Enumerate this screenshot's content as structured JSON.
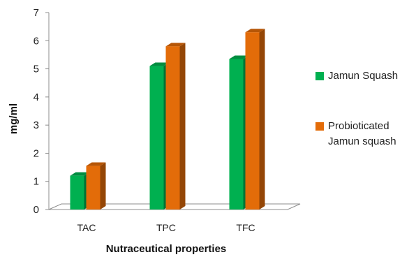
{
  "chart_data": {
    "type": "bar",
    "title": "",
    "categories": [
      "TAC",
      "TPC",
      "TFC"
    ],
    "series": [
      {
        "name": "Jamun Squash",
        "values": [
          1.2,
          5.1,
          5.35
        ],
        "color": "#00b050"
      },
      {
        "name": "Probioticated Jamun squash",
        "values": [
          1.55,
          5.8,
          6.3
        ],
        "color": "#e36c09"
      }
    ],
    "xlabel": "Nutraceutical properties",
    "ylabel": "mg/ml",
    "ylim": [
      0,
      7
    ],
    "yticks": [
      "0",
      "1",
      "2",
      "3",
      "4",
      "5",
      "6",
      "7"
    ],
    "grid": false,
    "legend": "right"
  }
}
